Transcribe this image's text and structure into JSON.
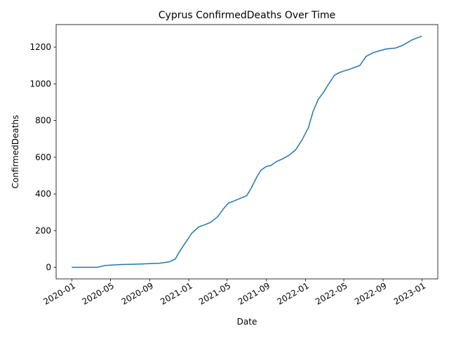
{
  "chart_data": {
    "type": "line",
    "title": "Cyprus  ConfirmedDeaths Over Time",
    "xlabel": "Date",
    "ylabel": "ConfirmedDeaths",
    "x_ticks": [
      "2020-01",
      "2020-05",
      "2020-09",
      "2021-01",
      "2021-05",
      "2021-09",
      "2022-01",
      "2022-05",
      "2022-09",
      "2023-01"
    ],
    "y_ticks": [
      0,
      200,
      400,
      600,
      800,
      1000,
      1200
    ],
    "xlim": [
      "2019-11-13",
      "2023-02-19"
    ],
    "ylim": [
      -63,
      1323
    ],
    "grid": false,
    "color": "#1f77b4",
    "series": [
      {
        "x": [
          "2020-01-01",
          "2020-03-20",
          "2020-04-15",
          "2020-06-01",
          "2020-08-01",
          "2020-10-01",
          "2020-11-01",
          "2020-11-20",
          "2020-12-01",
          "2020-12-20",
          "2021-01-10",
          "2021-02-01",
          "2021-02-20",
          "2021-03-10",
          "2021-04-01",
          "2021-04-20",
          "2021-05-05",
          "2021-05-20",
          "2021-06-10",
          "2021-07-01",
          "2021-07-15",
          "2021-08-01",
          "2021-08-15",
          "2021-09-01",
          "2021-09-15",
          "2021-10-01",
          "2021-10-20",
          "2021-11-10",
          "2021-12-01",
          "2021-12-20",
          "2022-01-10",
          "2022-01-25",
          "2022-02-10",
          "2022-02-25",
          "2022-03-15",
          "2022-04-01",
          "2022-04-15",
          "2022-05-01",
          "2022-05-20",
          "2022-06-20",
          "2022-07-10",
          "2022-08-01",
          "2022-08-20",
          "2022-09-10",
          "2022-10-10",
          "2022-11-01",
          "2022-12-01",
          "2022-12-31"
        ],
        "y": [
          0,
          0,
          10,
          15,
          18,
          22,
          30,
          45,
          80,
          130,
          185,
          220,
          232,
          245,
          275,
          320,
          350,
          360,
          375,
          390,
          430,
          490,
          530,
          550,
          555,
          575,
          590,
          610,
          640,
          690,
          760,
          850,
          915,
          950,
          1000,
          1045,
          1060,
          1070,
          1080,
          1100,
          1150,
          1170,
          1180,
          1190,
          1195,
          1210,
          1240,
          1260
        ]
      }
    ]
  }
}
